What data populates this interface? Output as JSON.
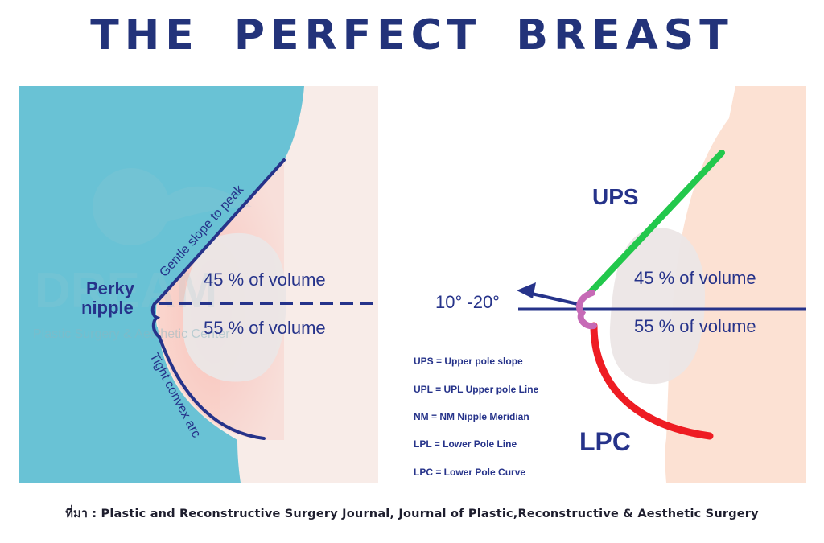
{
  "title": "THE PERFECT BREAST",
  "left": {
    "perky_line1": "Perky",
    "perky_line2": "nipple",
    "gentle_slope": "Gentle slope to peak",
    "tight_arc": "Tight convex arc",
    "upper_volume": "45 % of volume",
    "lower_volume": "55 % of volume",
    "watermark": "Plastic Surgery & Aesthetic Center"
  },
  "right": {
    "ups_label": "UPS",
    "lpc_label": "LPC",
    "angle_label": "10° -20°",
    "upper_volume": "45 % of volume",
    "lower_volume": "55 % of volume",
    "legend": [
      "UPS = Upper pole slope",
      "UPL = UPL Upper pole Line",
      "NM = NM  Nipple Meridian",
      "LPL = Lower Pole Line",
      "LPC = Lower Pole Curve"
    ]
  },
  "citation": "ที่มา : Plastic and Reconstructive Surgery Journal, Journal of Plastic,Reconstructive & Aesthetic Surgery",
  "colors": {
    "navy": "#26338a",
    "teal": "#69c2d5",
    "skin": "#fbe2d5",
    "green": "#22c84c",
    "red": "#ee1c23",
    "magenta": "#c66ab6"
  }
}
